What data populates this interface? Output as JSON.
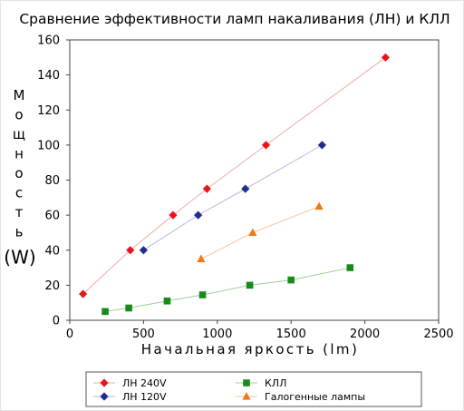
{
  "chart_data": {
    "type": "scatter",
    "title": "Сравнение эффективности ламп накаливания (ЛН) и КЛЛ",
    "xlabel": "Начальная яркость (lm)",
    "ylabel_word": "Мощность",
    "ylabel_unit": "(W)",
    "xlim": [
      0,
      2500
    ],
    "ylim": [
      0,
      160
    ],
    "x_ticks": [
      "0",
      "500",
      "1000",
      "1500",
      "2000",
      "2500"
    ],
    "y_ticks": [
      "0",
      "20",
      "40",
      "60",
      "80",
      "100",
      "120",
      "140",
      "160"
    ],
    "grid": false,
    "legend_position": "bottom",
    "series": [
      {
        "name": "ЛН  240V",
        "color": "#e8141c",
        "line_color": "#f2a9a9",
        "marker": "diamond",
        "points": [
          [
            90,
            15
          ],
          [
            410,
            40
          ],
          [
            700,
            60
          ],
          [
            930,
            75
          ],
          [
            1330,
            100
          ],
          [
            2140,
            150
          ]
        ]
      },
      {
        "name": "ЛН  120V",
        "color": "#1f2d8c",
        "line_color": "#b3b7dd",
        "marker": "diamond",
        "points": [
          [
            500,
            40
          ],
          [
            870,
            60
          ],
          [
            1190,
            75
          ],
          [
            1710,
            100
          ]
        ]
      },
      {
        "name": "КЛЛ",
        "color": "#1a8a1a",
        "line_color": "#9ccf9c",
        "marker": "square",
        "points": [
          [
            240,
            5
          ],
          [
            400,
            7
          ],
          [
            660,
            11
          ],
          [
            900,
            14.5
          ],
          [
            1220,
            20
          ],
          [
            1500,
            23
          ],
          [
            1900,
            30
          ]
        ]
      },
      {
        "name": "Галогенные лампы",
        "color": "#ef7a14",
        "line_color": "#f7c39a",
        "marker": "triangle",
        "points": [
          [
            890,
            35
          ],
          [
            1240,
            50
          ],
          [
            1690,
            65
          ]
        ]
      }
    ]
  }
}
